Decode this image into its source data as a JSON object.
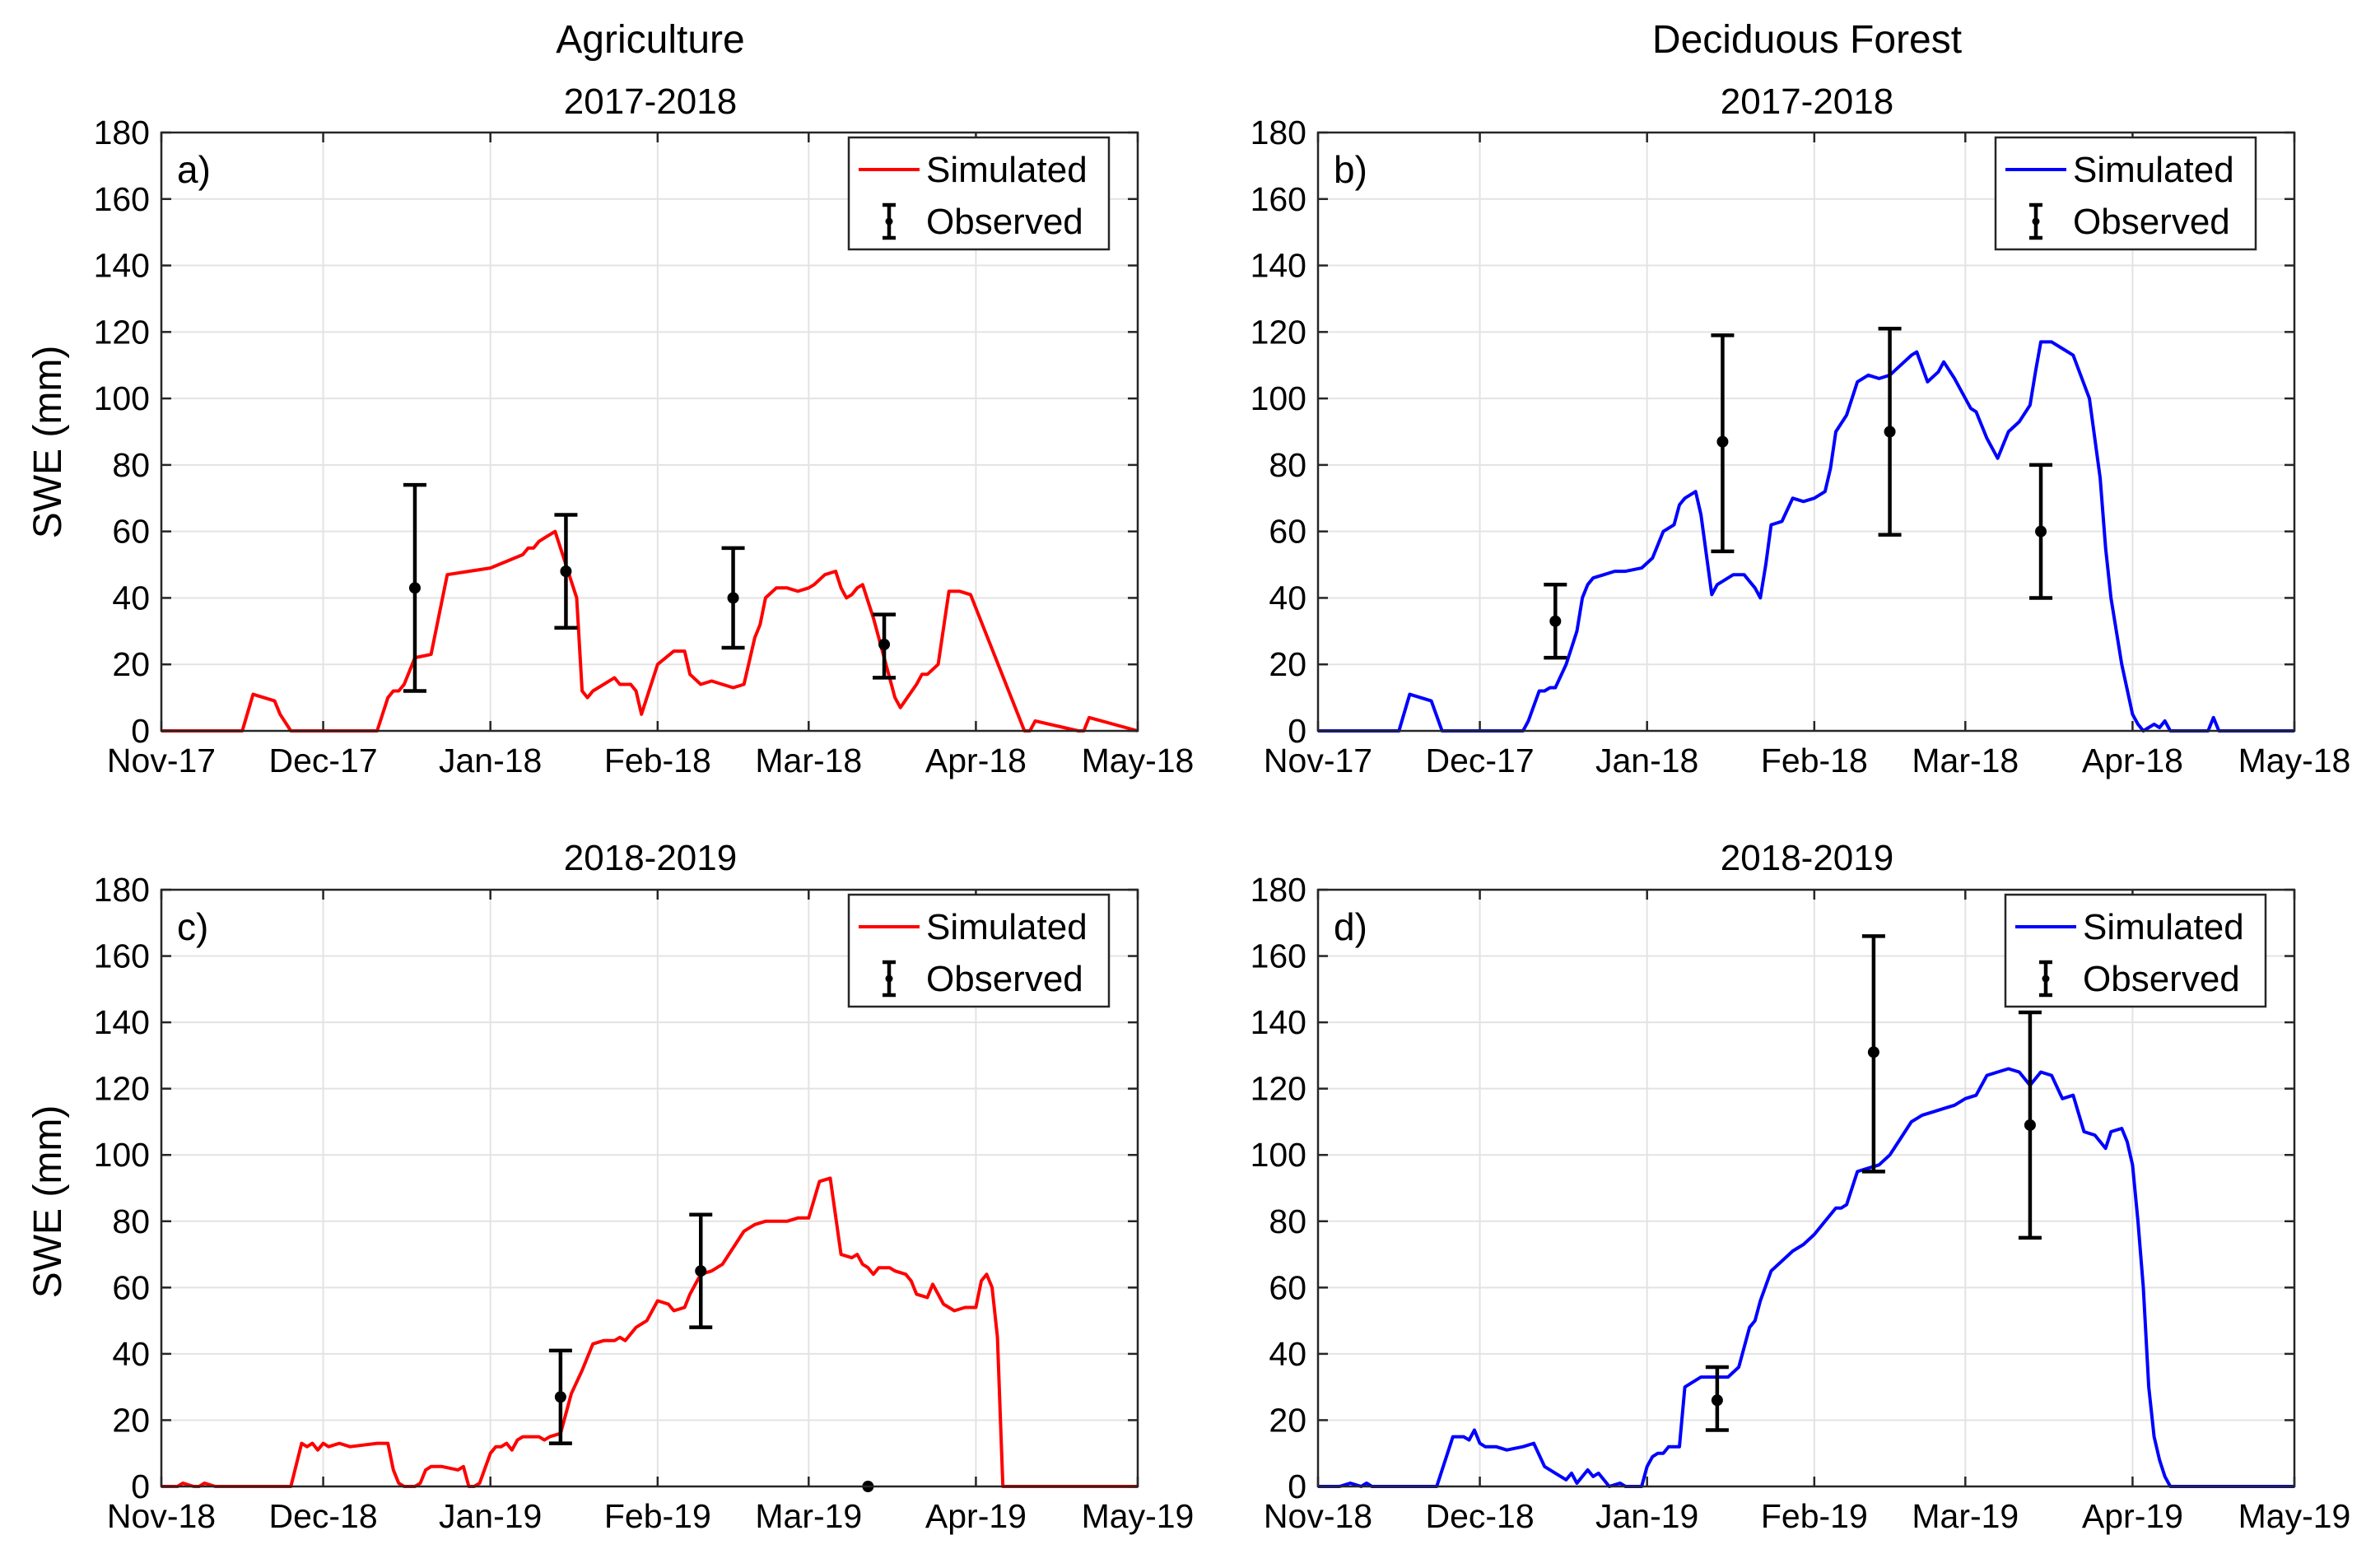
{
  "column_titles": [
    "Agriculture",
    "Deciduous Forest"
  ],
  "legend": {
    "simulated": "Simulated",
    "observed": "Observed"
  },
  "colors": {
    "agriculture": "#ff0000",
    "forest": "#0000ff",
    "observed": "#000000"
  },
  "chart_data": [
    {
      "type": "line",
      "panel": "a)",
      "title": "2017-2018",
      "ylabel": "SWE (mm)",
      "ylim": [
        0,
        180
      ],
      "yticks": [
        0,
        20,
        40,
        60,
        80,
        100,
        120,
        140,
        160,
        180
      ],
      "xlim_days": [
        0,
        181
      ],
      "xtick_labels": [
        "Nov-17",
        "Dec-17",
        "Jan-18",
        "Feb-18",
        "Mar-18",
        "Apr-18",
        "May-18"
      ],
      "xtick_days": [
        0,
        30,
        61,
        92,
        120,
        151,
        181
      ],
      "grid": true,
      "legend_position": "top-right",
      "series": [
        {
          "name": "Simulated",
          "color": "#ff0000",
          "x": [
            0,
            15,
            17,
            21,
            22,
            24,
            30,
            35,
            38,
            40,
            42,
            43,
            44,
            45,
            47,
            50,
            53,
            57,
            61,
            64,
            67,
            68,
            69,
            70,
            71,
            73,
            77,
            78,
            79,
            80,
            82,
            83,
            84,
            85,
            87,
            88,
            89,
            92,
            95,
            97,
            98,
            100,
            102,
            104,
            106,
            108,
            110,
            111,
            112,
            114,
            116,
            118,
            120,
            121,
            123,
            125,
            126,
            127,
            128,
            129,
            130,
            132,
            134,
            135,
            136,
            137,
            140,
            141,
            142,
            144,
            146,
            148,
            150,
            160,
            161,
            162,
            170,
            171,
            172,
            181
          ],
          "y": [
            0,
            0,
            11,
            9,
            5,
            0,
            0,
            0,
            0,
            0,
            10,
            12,
            12,
            14,
            22,
            23,
            47,
            48,
            49,
            51,
            53,
            55,
            55,
            57,
            58,
            60,
            40,
            12,
            10,
            12,
            14,
            15,
            16,
            14,
            14,
            12,
            5,
            20,
            24,
            24,
            17,
            14,
            15,
            14,
            13,
            14,
            28,
            32,
            40,
            43,
            43,
            42,
            43,
            44,
            47,
            48,
            43,
            40,
            41,
            43,
            44,
            34,
            22,
            16,
            10,
            7,
            14,
            17,
            17,
            20,
            42,
            42,
            41,
            0,
            0,
            3,
            0,
            0,
            4,
            0
          ]
        },
        {
          "name": "Observed",
          "color": "#000000",
          "points": [
            {
              "x": 47,
              "y": 43,
              "low": 12,
              "high": 74
            },
            {
              "x": 75,
              "y": 48,
              "low": 31,
              "high": 65
            },
            {
              "x": 106,
              "y": 40,
              "low": 25,
              "high": 55
            },
            {
              "x": 134,
              "y": 26,
              "low": 16,
              "high": 35
            }
          ]
        }
      ]
    },
    {
      "type": "line",
      "panel": "b)",
      "title": "2017-2018",
      "ylabel": "",
      "ylim": [
        0,
        180
      ],
      "yticks": [
        0,
        20,
        40,
        60,
        80,
        100,
        120,
        140,
        160,
        180
      ],
      "xlim_days": [
        0,
        181
      ],
      "xtick_labels": [
        "Nov-17",
        "Dec-17",
        "Jan-18",
        "Feb-18",
        "Mar-18",
        "Apr-18",
        "May-18"
      ],
      "xtick_days": [
        0,
        30,
        61,
        92,
        120,
        151,
        181
      ],
      "grid": true,
      "legend_position": "top-right",
      "series": [
        {
          "name": "Simulated",
          "color": "#0000ff",
          "x": [
            0,
            15,
            17,
            19,
            21,
            23,
            30,
            37,
            38,
            39,
            41,
            42,
            43,
            44,
            46,
            47,
            48,
            49,
            50,
            51,
            53,
            55,
            57,
            60,
            62,
            64,
            66,
            67,
            68,
            70,
            71,
            73,
            74,
            75,
            77,
            79,
            80,
            81,
            82,
            83,
            84,
            86,
            88,
            90,
            92,
            94,
            95,
            96,
            98,
            100,
            102,
            104,
            106,
            108,
            110,
            111,
            113,
            115,
            116,
            118,
            120,
            121,
            122,
            124,
            126,
            128,
            130,
            132,
            133,
            134,
            136,
            138,
            140,
            143,
            145,
            146,
            147,
            149,
            151,
            152,
            153,
            155,
            156,
            157,
            158,
            159,
            160,
            161,
            165,
            166,
            167,
            172,
            181
          ],
          "y": [
            0,
            0,
            11,
            10,
            9,
            0,
            0,
            0,
            0,
            3,
            12,
            12,
            13,
            13,
            20,
            25,
            30,
            40,
            44,
            46,
            47,
            48,
            48,
            49,
            52,
            60,
            62,
            68,
            70,
            72,
            65,
            41,
            44,
            45,
            47,
            47,
            45,
            43,
            40,
            50,
            62,
            63,
            70,
            69,
            70,
            72,
            79,
            90,
            95,
            105,
            107,
            106,
            107,
            110,
            113,
            114,
            105,
            108,
            111,
            106,
            100,
            97,
            96,
            88,
            82,
            90,
            93,
            98,
            108,
            117,
            117,
            115,
            113,
            100,
            76,
            55,
            40,
            20,
            5,
            2,
            0,
            2,
            1,
            3,
            0,
            0,
            0,
            0,
            0,
            4,
            0,
            0,
            0
          ]
        },
        {
          "name": "Observed",
          "color": "#000000",
          "points": [
            {
              "x": 44,
              "y": 33,
              "low": 22,
              "high": 44
            },
            {
              "x": 75,
              "y": 87,
              "low": 54,
              "high": 119
            },
            {
              "x": 106,
              "y": 90,
              "low": 59,
              "high": 121
            },
            {
              "x": 134,
              "y": 60,
              "low": 40,
              "high": 80
            }
          ]
        }
      ]
    },
    {
      "type": "line",
      "panel": "c)",
      "title": "2018-2019",
      "ylabel": "SWE (mm)",
      "ylim": [
        0,
        180
      ],
      "yticks": [
        0,
        20,
        40,
        60,
        80,
        100,
        120,
        140,
        160,
        180
      ],
      "xlim_days": [
        0,
        181
      ],
      "xtick_labels": [
        "Nov-18",
        "Dec-18",
        "Jan-19",
        "Feb-19",
        "Mar-19",
        "Apr-19",
        "May-19"
      ],
      "xtick_days": [
        0,
        30,
        61,
        92,
        120,
        151,
        181
      ],
      "grid": true,
      "legend_position": "top-right",
      "series": [
        {
          "name": "Simulated",
          "color": "#ff0000",
          "x": [
            0,
            3,
            4,
            6,
            7,
            8,
            10,
            11,
            12,
            24,
            26,
            27,
            28,
            29,
            30,
            31,
            33,
            35,
            40,
            42,
            43,
            44,
            45,
            47,
            48,
            49,
            50,
            52,
            55,
            56,
            57,
            58,
            59,
            61,
            62,
            63,
            64,
            65,
            66,
            67,
            70,
            71,
            72,
            74,
            76,
            78,
            80,
            82,
            84,
            85,
            86,
            88,
            90,
            92,
            94,
            95,
            97,
            98,
            100,
            102,
            104,
            106,
            108,
            110,
            112,
            114,
            116,
            118,
            119,
            120,
            122,
            124,
            126,
            128,
            129,
            130,
            131,
            132,
            133,
            134,
            135,
            136,
            138,
            139,
            140,
            142,
            143,
            145,
            147,
            149,
            151,
            152,
            153,
            154,
            155,
            156,
            157,
            158,
            181
          ],
          "y": [
            0,
            0,
            1,
            0,
            0,
            1,
            0,
            0,
            0,
            0,
            13,
            12,
            13,
            11,
            13,
            12,
            13,
            12,
            13,
            13,
            5,
            1,
            0,
            0,
            1,
            5,
            6,
            6,
            5,
            6,
            0,
            0,
            1,
            10,
            12,
            12,
            13,
            11,
            14,
            15,
            15,
            14,
            15,
            16,
            28,
            35,
            43,
            44,
            44,
            45,
            44,
            48,
            50,
            56,
            55,
            53,
            54,
            58,
            64,
            65,
            67,
            72,
            77,
            79,
            80,
            80,
            80,
            81,
            81,
            81,
            92,
            93,
            70,
            69,
            70,
            67,
            66,
            64,
            66,
            66,
            66,
            65,
            64,
            62,
            58,
            57,
            61,
            55,
            53,
            54,
            54,
            62,
            64,
            60,
            45,
            0,
            0,
            0,
            0
          ]
        },
        {
          "name": "Observed",
          "color": "#000000",
          "points": [
            {
              "x": 74,
              "y": 27,
              "low": 13,
              "high": 41
            },
            {
              "x": 100,
              "y": 65,
              "low": 48,
              "high": 82
            },
            {
              "x": 131,
              "y": 0,
              "low": 0,
              "high": 0
            }
          ]
        }
      ]
    },
    {
      "type": "line",
      "panel": "d)",
      "title": "2018-2019",
      "ylabel": "",
      "ylim": [
        0,
        180
      ],
      "yticks": [
        0,
        20,
        40,
        60,
        80,
        100,
        120,
        140,
        160,
        180
      ],
      "xlim_days": [
        0,
        181
      ],
      "xtick_labels": [
        "Nov-18",
        "Dec-18",
        "Jan-19",
        "Feb-19",
        "Mar-19",
        "Apr-19",
        "May-19"
      ],
      "xtick_days": [
        0,
        30,
        61,
        92,
        120,
        151,
        181
      ],
      "grid": true,
      "legend_position": "top-right",
      "series": [
        {
          "name": "Simulated",
          "color": "#0000ff",
          "x": [
            0,
            4,
            6,
            8,
            9,
            10,
            11,
            22,
            24,
            25,
            27,
            28,
            29,
            30,
            31,
            33,
            35,
            38,
            40,
            42,
            44,
            46,
            47,
            48,
            50,
            51,
            52,
            54,
            56,
            57,
            58,
            59,
            60,
            61,
            62,
            63,
            64,
            65,
            67,
            68,
            70,
            71,
            72,
            74,
            76,
            78,
            80,
            81,
            82,
            84,
            86,
            88,
            90,
            92,
            94,
            96,
            97,
            98,
            100,
            102,
            104,
            106,
            108,
            110,
            112,
            114,
            116,
            118,
            120,
            122,
            124,
            126,
            128,
            130,
            132,
            134,
            136,
            138,
            140,
            142,
            144,
            146,
            147,
            149,
            150,
            151,
            152,
            153,
            154,
            155,
            156,
            157,
            158,
            160,
            162,
            181
          ],
          "y": [
            0,
            0,
            1,
            0,
            1,
            0,
            0,
            0,
            10,
            15,
            15,
            14,
            17,
            13,
            12,
            12,
            11,
            12,
            13,
            6,
            4,
            2,
            4,
            1,
            5,
            3,
            4,
            0,
            1,
            0,
            0,
            0,
            0,
            6,
            9,
            10,
            10,
            12,
            12,
            30,
            32,
            33,
            33,
            33,
            33,
            36,
            48,
            50,
            56,
            65,
            68,
            71,
            73,
            76,
            80,
            84,
            84,
            85,
            95,
            96,
            97,
            100,
            105,
            110,
            112,
            113,
            114,
            115,
            117,
            118,
            124,
            125,
            126,
            125,
            121,
            125,
            124,
            117,
            118,
            107,
            106,
            102,
            107,
            108,
            104,
            97,
            80,
            60,
            30,
            15,
            8,
            3,
            0,
            0,
            0,
            0
          ]
        },
        {
          "name": "Observed",
          "color": "#000000",
          "points": [
            {
              "x": 74,
              "y": 26,
              "low": 17,
              "high": 36
            },
            {
              "x": 103,
              "y": 131,
              "low": 95,
              "high": 166
            },
            {
              "x": 132,
              "y": 109,
              "low": 75,
              "high": 143
            }
          ]
        }
      ]
    }
  ]
}
